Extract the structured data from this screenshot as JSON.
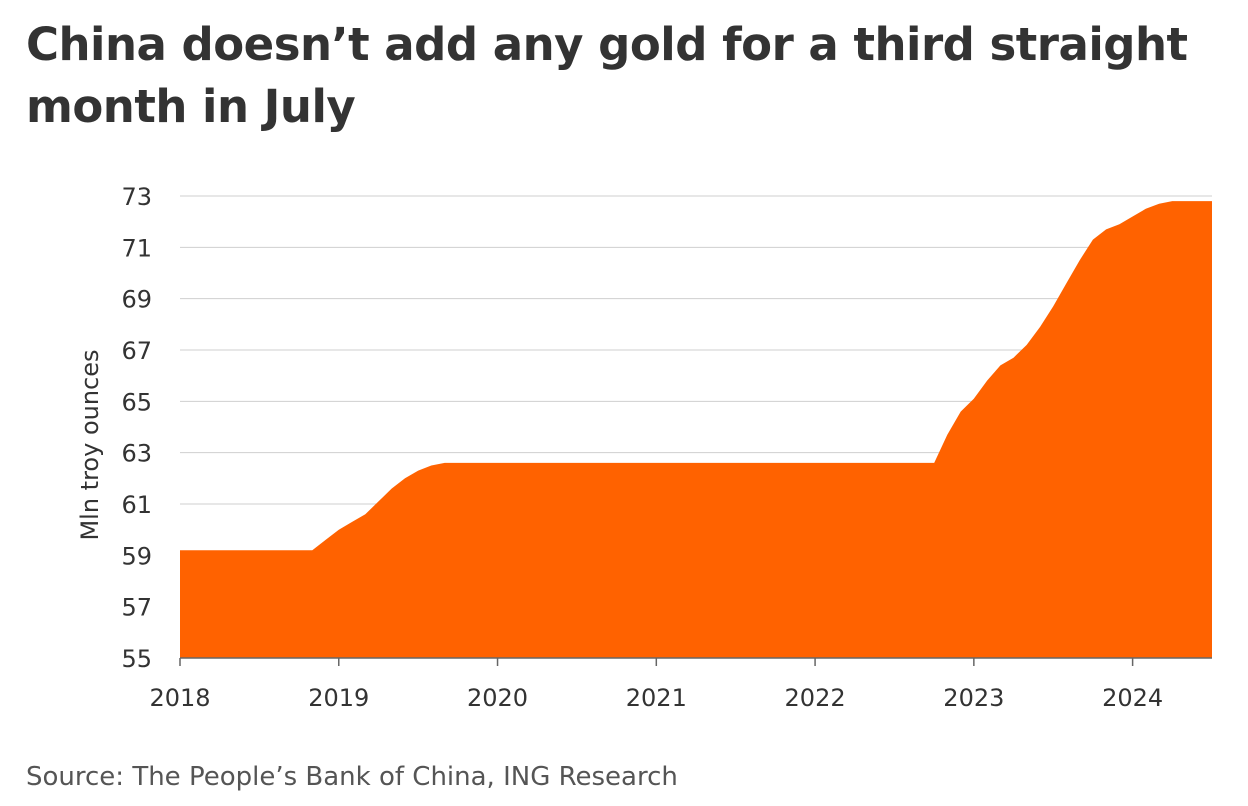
{
  "header": {
    "title": "China doesn’t add any gold for a third straight month in July"
  },
  "footer": {
    "source": "Source: The People’s Bank of China, ING Research"
  },
  "colors": {
    "area": "#ff6200",
    "grid": "#cfcfcf",
    "text": "#333333"
  },
  "chart_data": {
    "type": "area",
    "title": "China doesn’t add any gold for a third straight month in July",
    "xlabel": "",
    "ylabel": "Mln troy ounces",
    "ylim": [
      55,
      73
    ],
    "yticks": [
      55,
      57,
      59,
      61,
      63,
      65,
      67,
      69,
      71,
      73
    ],
    "xlim": [
      2018.0,
      2024.5
    ],
    "xticks": [
      2018,
      2019,
      2020,
      2021,
      2022,
      2023,
      2024
    ],
    "grid": true,
    "legend": "none",
    "series": [
      {
        "x": [
          2018.0,
          2018.833,
          2018.917,
          2019.0,
          2019.083,
          2019.167,
          2019.25,
          2019.333,
          2019.417,
          2019.5,
          2019.583,
          2019.667,
          2019.75,
          2022.75,
          2022.833,
          2022.917,
          2023.0,
          2023.083,
          2023.167,
          2023.25,
          2023.333,
          2023.417,
          2023.5,
          2023.583,
          2023.667,
          2023.75,
          2023.833,
          2023.917,
          2024.0,
          2024.083,
          2024.167,
          2024.25,
          2024.333,
          2024.417,
          2024.5
        ],
        "values": [
          59.2,
          59.2,
          59.6,
          60.0,
          60.3,
          60.6,
          61.1,
          61.6,
          62.0,
          62.3,
          62.5,
          62.6,
          62.6,
          62.6,
          63.7,
          64.6,
          65.1,
          65.8,
          66.4,
          66.7,
          67.2,
          67.9,
          68.7,
          69.6,
          70.5,
          71.3,
          71.7,
          71.9,
          72.2,
          72.5,
          72.7,
          72.8,
          72.8,
          72.8,
          72.8
        ]
      }
    ]
  }
}
